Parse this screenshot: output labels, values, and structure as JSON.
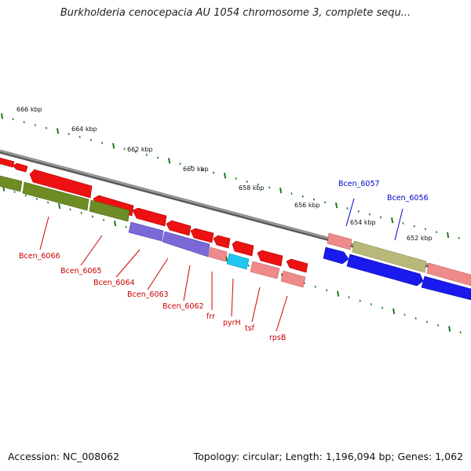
{
  "title": "Burkholderia cenocepacia AU 1054 chromosome 3, complete sequ...",
  "footer": {
    "accession": "Accession: NC_008062",
    "summary": "Topology: circular; Length: 1,196,094 bp; Genes: 1,062"
  },
  "kbp_labels": [
    "666 kbp",
    "664 kbp",
    "662 kbp",
    "660 kbp",
    "658 kbp",
    "656 kbp",
    "654 kbp",
    "652 kbp"
  ],
  "gene_labels": {
    "Bcen_6066": "Bcen_6066",
    "Bcen_6065": "Bcen_6065",
    "Bcen_6064": "Bcen_6064",
    "Bcen_6063": "Bcen_6063",
    "Bcen_6062": "Bcen_6062",
    "frr": "frr",
    "pyrH": "pyrH",
    "tsf": "tsf",
    "rpsB": "rpsB",
    "Bcen_6057": "Bcen_6057",
    "Bcen_6056": "Bcen_6056"
  },
  "colors": {
    "cds_red": "#ee1111",
    "olive": "#6e8c24",
    "purple": "#7a6ad8",
    "pink": "#ee8a8a",
    "cyan": "#1ec8ee",
    "khaki": "#b8b87a",
    "blue": "#1a1aee",
    "backbone": "#8c8c8c",
    "tick_green": "#1e7a1e",
    "label_red": "#cc0000",
    "label_blue": "#0000cc"
  }
}
